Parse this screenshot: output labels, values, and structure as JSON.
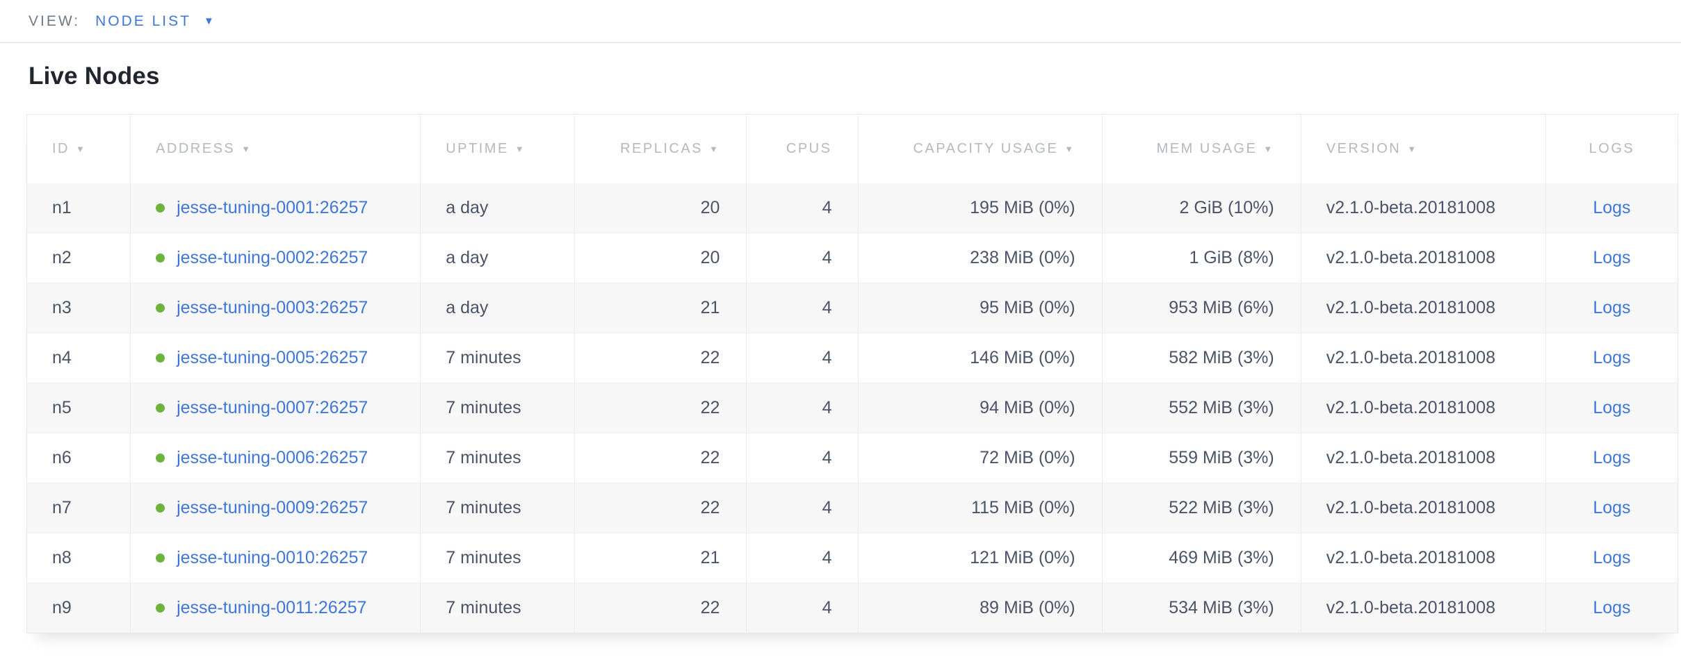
{
  "view_bar": {
    "label": "VIEW:",
    "selected": "NODE LIST"
  },
  "page": {
    "title": "Live Nodes"
  },
  "table": {
    "columns": [
      {
        "key": "id",
        "label": "ID",
        "sortable": true,
        "align": "left"
      },
      {
        "key": "address",
        "label": "ADDRESS",
        "sortable": true,
        "align": "left"
      },
      {
        "key": "uptime",
        "label": "UPTIME",
        "sortable": true,
        "align": "left"
      },
      {
        "key": "replicas",
        "label": "REPLICAS",
        "sortable": true,
        "align": "right"
      },
      {
        "key": "cpus",
        "label": "CPUS",
        "sortable": false,
        "align": "right"
      },
      {
        "key": "capacity",
        "label": "CAPACITY USAGE",
        "sortable": true,
        "align": "right"
      },
      {
        "key": "mem",
        "label": "MEM USAGE",
        "sortable": true,
        "align": "right"
      },
      {
        "key": "version",
        "label": "VERSION",
        "sortable": true,
        "align": "left"
      },
      {
        "key": "logs",
        "label": "LOGS",
        "sortable": false,
        "align": "center"
      }
    ],
    "rows": [
      {
        "id": "n1",
        "status": "live",
        "address": "jesse-tuning-0001:26257",
        "uptime": "a day",
        "replicas": "20",
        "cpus": "4",
        "capacity": "195 MiB (0%)",
        "mem": "2 GiB (10%)",
        "version": "v2.1.0-beta.20181008",
        "logs": "Logs"
      },
      {
        "id": "n2",
        "status": "live",
        "address": "jesse-tuning-0002:26257",
        "uptime": "a day",
        "replicas": "20",
        "cpus": "4",
        "capacity": "238 MiB (0%)",
        "mem": "1 GiB (8%)",
        "version": "v2.1.0-beta.20181008",
        "logs": "Logs"
      },
      {
        "id": "n3",
        "status": "live",
        "address": "jesse-tuning-0003:26257",
        "uptime": "a day",
        "replicas": "21",
        "cpus": "4",
        "capacity": "95 MiB (0%)",
        "mem": "953 MiB (6%)",
        "version": "v2.1.0-beta.20181008",
        "logs": "Logs"
      },
      {
        "id": "n4",
        "status": "live",
        "address": "jesse-tuning-0005:26257",
        "uptime": "7 minutes",
        "replicas": "22",
        "cpus": "4",
        "capacity": "146 MiB (0%)",
        "mem": "582 MiB (3%)",
        "version": "v2.1.0-beta.20181008",
        "logs": "Logs"
      },
      {
        "id": "n5",
        "status": "live",
        "address": "jesse-tuning-0007:26257",
        "uptime": "7 minutes",
        "replicas": "22",
        "cpus": "4",
        "capacity": "94 MiB (0%)",
        "mem": "552 MiB (3%)",
        "version": "v2.1.0-beta.20181008",
        "logs": "Logs"
      },
      {
        "id": "n6",
        "status": "live",
        "address": "jesse-tuning-0006:26257",
        "uptime": "7 minutes",
        "replicas": "22",
        "cpus": "4",
        "capacity": "72 MiB (0%)",
        "mem": "559 MiB (3%)",
        "version": "v2.1.0-beta.20181008",
        "logs": "Logs"
      },
      {
        "id": "n7",
        "status": "live",
        "address": "jesse-tuning-0009:26257",
        "uptime": "7 minutes",
        "replicas": "22",
        "cpus": "4",
        "capacity": "115 MiB (0%)",
        "mem": "522 MiB (3%)",
        "version": "v2.1.0-beta.20181008",
        "logs": "Logs"
      },
      {
        "id": "n8",
        "status": "live",
        "address": "jesse-tuning-0010:26257",
        "uptime": "7 minutes",
        "replicas": "21",
        "cpus": "4",
        "capacity": "121 MiB (0%)",
        "mem": "469 MiB (3%)",
        "version": "v2.1.0-beta.20181008",
        "logs": "Logs"
      },
      {
        "id": "n9",
        "status": "live",
        "address": "jesse-tuning-0011:26257",
        "uptime": "7 minutes",
        "replicas": "22",
        "cpus": "4",
        "capacity": "89 MiB (0%)",
        "mem": "534 MiB (3%)",
        "version": "v2.1.0-beta.20181008",
        "logs": "Logs"
      }
    ]
  },
  "icons": {
    "view_caret": "chevron-down-icon",
    "sort_caret": "sort-desc-icon",
    "live_status": "node-live-dot-icon"
  },
  "colors": {
    "link": "#3d76dd",
    "dot": "#6db33f",
    "header-text": "#b4b8bf",
    "cell-text": "#4a5468",
    "stripe": "#f7f7f7",
    "border": "#e7e7e7",
    "view-label": "#6f7889",
    "title": "#21262e"
  }
}
